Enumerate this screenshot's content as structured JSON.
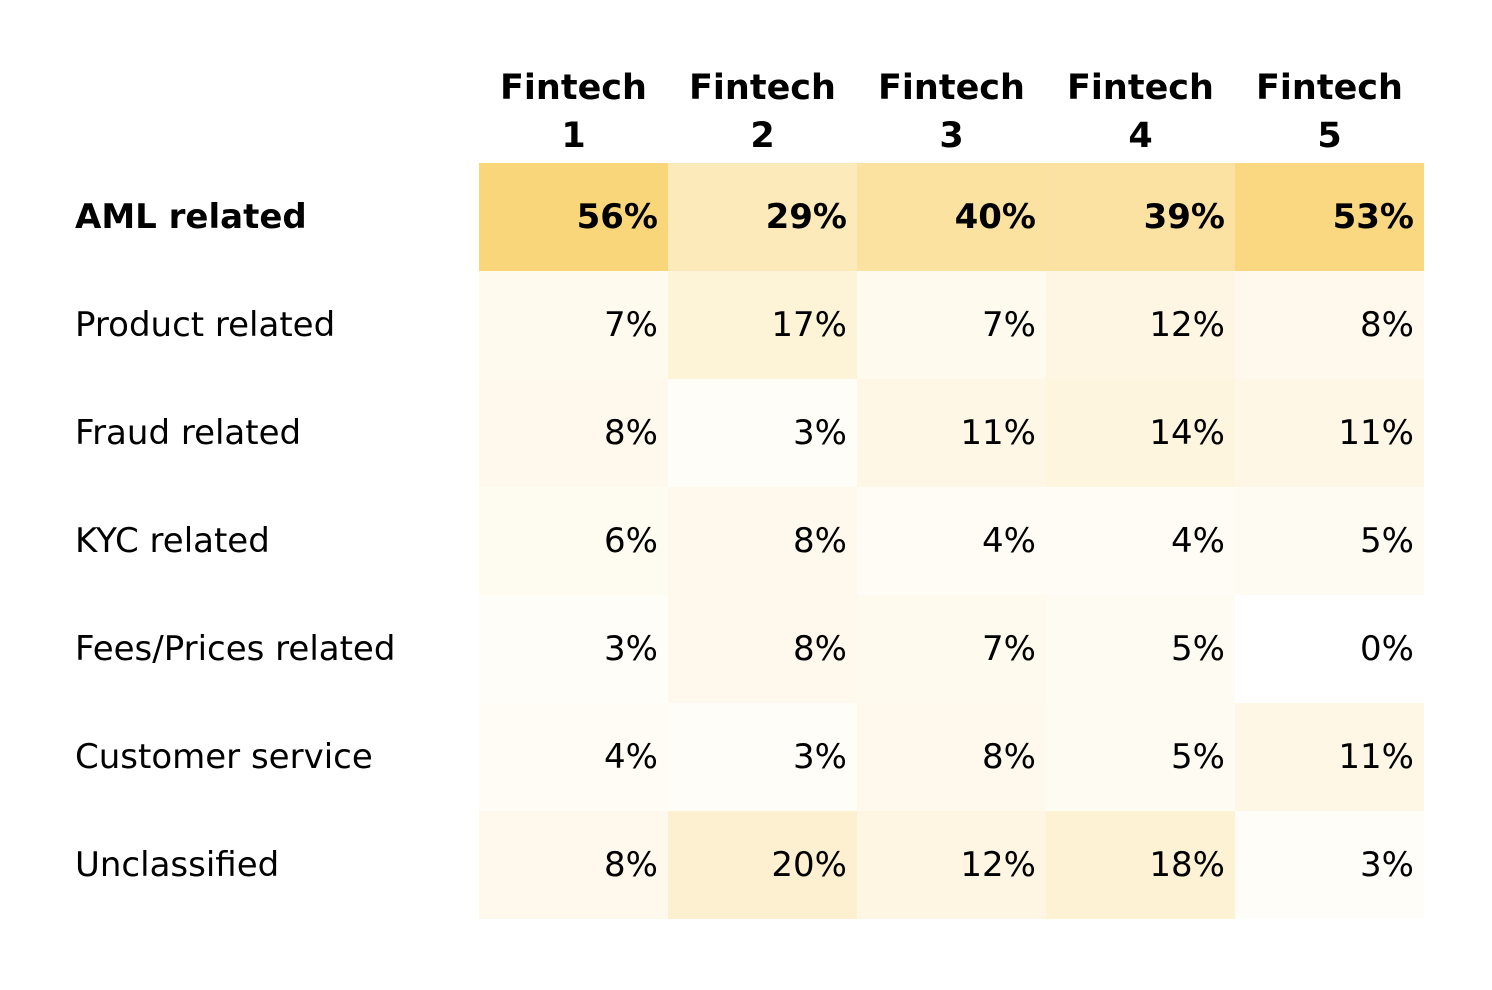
{
  "chart_data": {
    "type": "heatmap",
    "columns": [
      "Fintech 1",
      "Fintech 2",
      "Fintech 3",
      "Fintech 4",
      "Fintech 5"
    ],
    "rows": [
      "AML related",
      "Product related",
      "Fraud related",
      "KYC related",
      "Fees/Prices related",
      "Customer service",
      "Unclassified"
    ],
    "values": [
      [
        56,
        29,
        40,
        39,
        53
      ],
      [
        7,
        17,
        7,
        12,
        8
      ],
      [
        8,
        3,
        11,
        14,
        11
      ],
      [
        6,
        8,
        4,
        4,
        5
      ],
      [
        3,
        8,
        7,
        5,
        0
      ],
      [
        4,
        3,
        8,
        5,
        11
      ],
      [
        8,
        20,
        12,
        18,
        3
      ]
    ],
    "value_suffix": "%",
    "bold_rows": [
      "AML related"
    ],
    "color_scale": {
      "min_value": 0,
      "max_value": 56,
      "min_color": "#FFFFFF",
      "max_color": "#F9D67A"
    }
  }
}
